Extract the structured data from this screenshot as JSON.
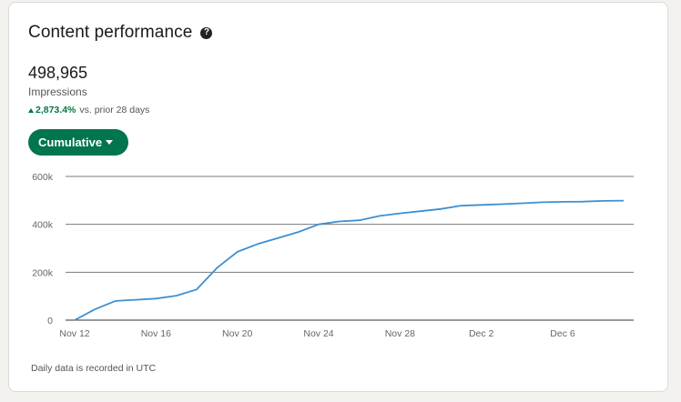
{
  "header": {
    "title": "Content performance",
    "help_icon": "question-circle-icon"
  },
  "metric": {
    "value": "498,965",
    "label": "Impressions",
    "change_value": "2,873.4%",
    "change_suffix": "vs. prior 28 days",
    "change_direction": "up"
  },
  "dropdown": {
    "label": "Cumulative"
  },
  "footnote": "Daily data is recorded in UTC",
  "colors": {
    "accent": "#01754f",
    "positive": "#057642",
    "line": "#3d8fd1",
    "gridline": "#7a7a7a"
  },
  "chart_data": {
    "type": "line",
    "title": "",
    "xlabel": "",
    "ylabel": "",
    "x_tick_labels": [
      "Nov 12",
      "Nov 16",
      "Nov 20",
      "Nov 24",
      "Nov 28",
      "Dec 2",
      "Dec 6"
    ],
    "y_tick_labels": [
      "0",
      "200k",
      "400k",
      "600k"
    ],
    "y_ticks": [
      0,
      200000,
      400000,
      600000
    ],
    "ylim": [
      0,
      600000
    ],
    "x": [
      "Nov 12",
      "Nov 13",
      "Nov 14",
      "Nov 15",
      "Nov 16",
      "Nov 17",
      "Nov 18",
      "Nov 19",
      "Nov 20",
      "Nov 21",
      "Nov 22",
      "Nov 23",
      "Nov 24",
      "Nov 25",
      "Nov 26",
      "Nov 27",
      "Nov 28",
      "Nov 29",
      "Nov 30",
      "Dec 1",
      "Dec 2",
      "Dec 3",
      "Dec 4",
      "Dec 5",
      "Dec 6",
      "Dec 7",
      "Dec 8",
      "Dec 9"
    ],
    "x_range": [
      "Nov 12",
      "Dec 9"
    ],
    "series": [
      {
        "values": [
          0,
          45000,
          80000,
          85000,
          90000,
          102000,
          128000,
          218000,
          285000,
          318000,
          343000,
          368000,
          400000,
          412000,
          417000,
          435000,
          446000,
          455000,
          464000,
          478000,
          481000,
          484000,
          488000,
          492000,
          494000,
          495000,
          498000,
          498965
        ]
      }
    ],
    "grid": true,
    "legend": "none"
  }
}
